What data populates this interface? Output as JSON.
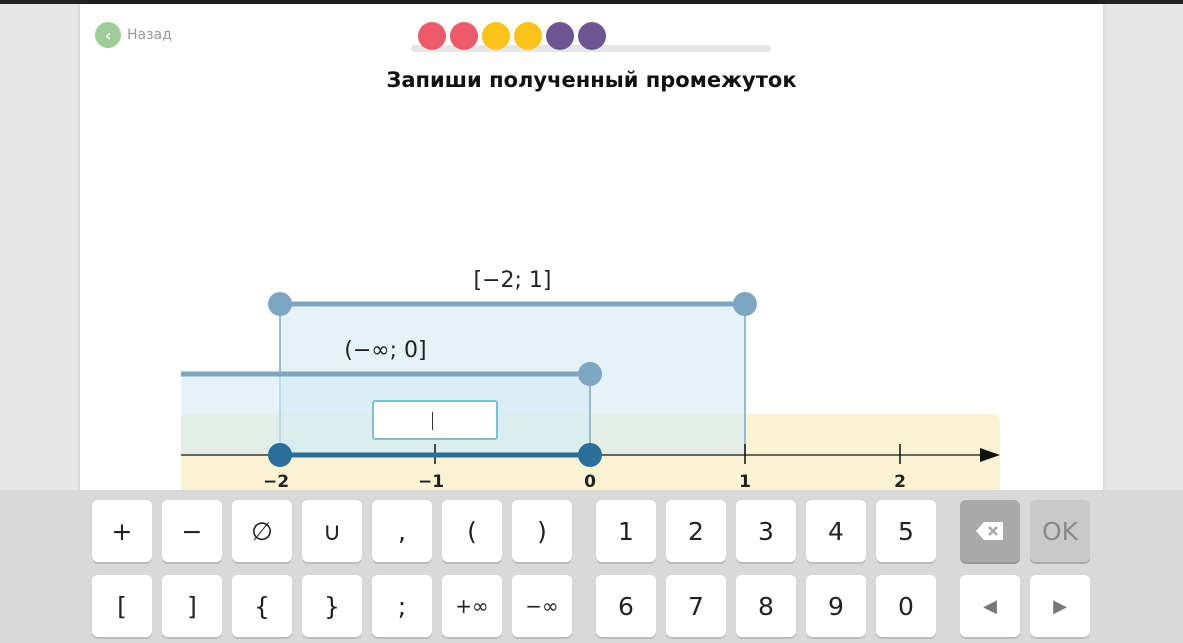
{
  "header": {
    "back_label": "Назад",
    "back_icon": "chevron-left-icon",
    "title": "Запиши полученный промежуток",
    "progress_dots": [
      "#ee5a6a",
      "#ee5a6a",
      "#fbc318",
      "#fbc318",
      "#6d5592",
      "#6d5592"
    ]
  },
  "number_line": {
    "ticks": [
      -2,
      -1,
      0,
      1,
      2
    ],
    "tick_labels": [
      "−2",
      "−1",
      "0",
      "1",
      "2"
    ],
    "intervals": [
      {
        "label": "[−2; 1]",
        "from": -2,
        "to": 1,
        "closed_left": true,
        "closed_right": true
      },
      {
        "label": "(−∞; 0]",
        "from": "-inf",
        "to": 0,
        "closed_right": true
      }
    ],
    "result": {
      "from": -2,
      "to": 0
    },
    "answer_value": ""
  },
  "keyboard": {
    "row1": [
      "+",
      "−",
      "∅",
      "∪",
      ",",
      "(",
      ")",
      "1",
      "2",
      "3",
      "4",
      "5"
    ],
    "row2": [
      "[",
      "]",
      "{",
      "}",
      ";",
      "+∞",
      "−∞",
      "6",
      "7",
      "8",
      "9",
      "0"
    ],
    "backspace_icon": "backspace-icon",
    "ok_label": "OK",
    "left_icon": "◀",
    "right_icon": "▶"
  },
  "colors": {
    "interval": "#7ea6c2",
    "result": "#2a6f9a",
    "band": "#faf3d3",
    "fill": "#d4ebf3"
  }
}
